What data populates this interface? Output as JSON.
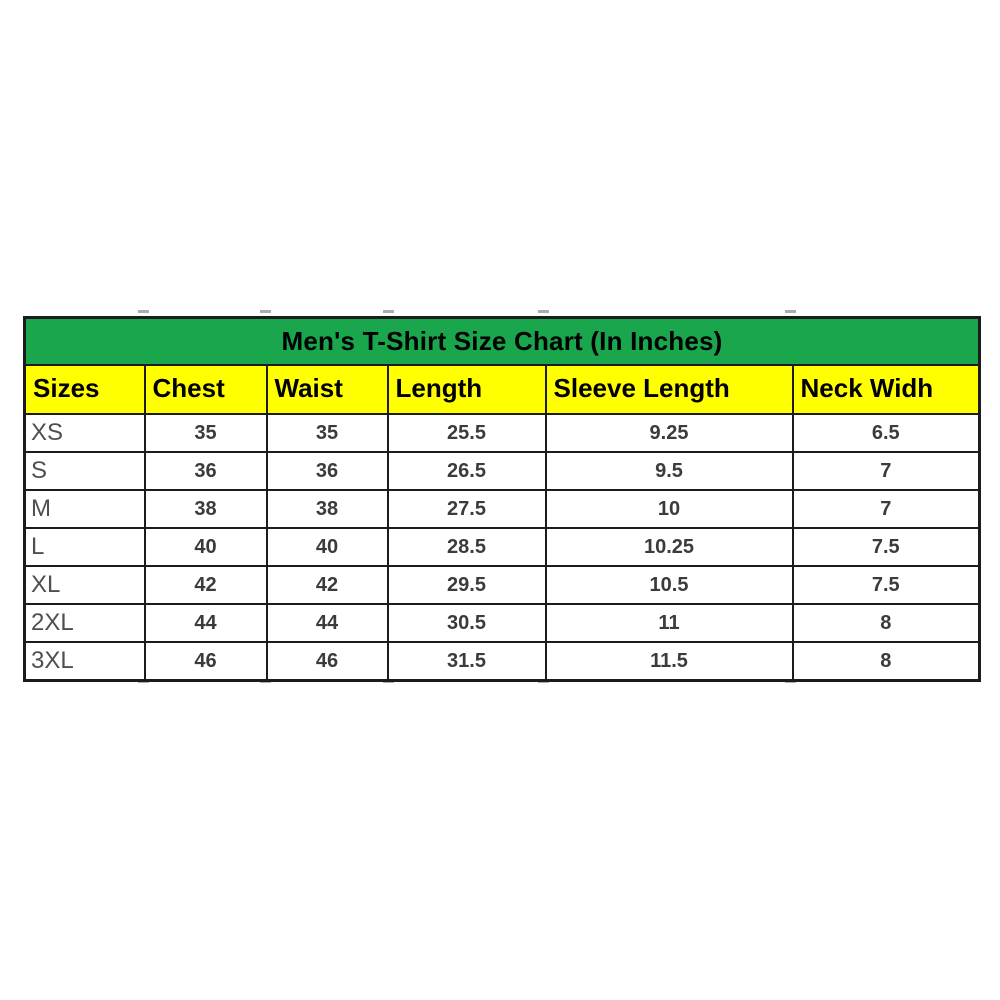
{
  "chart_data": {
    "type": "table",
    "title": "Men's T-Shirt Size Chart (In Inches)",
    "columns": [
      "Sizes",
      "Chest",
      "Waist",
      "Length",
      "Sleeve Length",
      "Neck Widh"
    ],
    "rows": [
      [
        "XS",
        "35",
        "35",
        "25.5",
        "9.25",
        "6.5"
      ],
      [
        "S",
        "36",
        "36",
        "26.5",
        "9.5",
        "7"
      ],
      [
        "M",
        "38",
        "38",
        "27.5",
        "10",
        "7"
      ],
      [
        "L",
        "40",
        "40",
        "28.5",
        "10.25",
        "7.5"
      ],
      [
        "XL",
        "42",
        "42",
        "29.5",
        "10.5",
        "7.5"
      ],
      [
        "2XL",
        "44",
        "44",
        "30.5",
        "11",
        "8"
      ],
      [
        "3XL",
        "46",
        "46",
        "31.5",
        "11.5",
        "8"
      ]
    ],
    "units": "inches"
  },
  "colors": {
    "page_bg": "#ffffff",
    "title_bg": "#19a64d",
    "header_bg": "#ffff00",
    "border": "#1c1c1c",
    "header_text": "#000000",
    "size_label_text": "#4f4f4f",
    "value_text": "#3b3b3b"
  }
}
